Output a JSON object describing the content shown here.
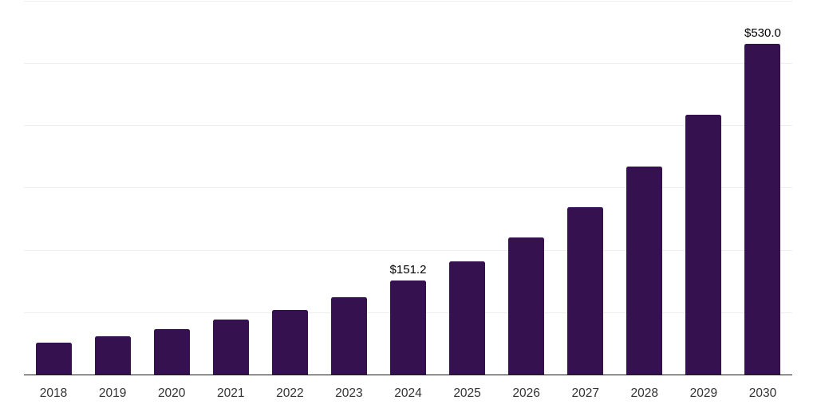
{
  "chart_data": {
    "type": "bar",
    "title": "",
    "xlabel": "",
    "ylabel": "",
    "categories": [
      "2018",
      "2019",
      "2020",
      "2021",
      "2022",
      "2023",
      "2024",
      "2025",
      "2026",
      "2027",
      "2028",
      "2029",
      "2030"
    ],
    "values": [
      50.6,
      60.8,
      73.5,
      87.6,
      103.8,
      124.6,
      151.2,
      181.6,
      219.8,
      268.6,
      333.3,
      416.5,
      530.0
    ],
    "data_labels": [
      {
        "category": "2024",
        "text": "$151.2"
      },
      {
        "category": "2030",
        "text": "$530.0"
      }
    ],
    "ylim": [
      0,
      600
    ],
    "gridline_step": 100,
    "grid": "horizontal",
    "legend": "none",
    "y_axis_tick_labels_visible": false,
    "colors": {
      "bar": "#361150",
      "gridline": "#eeeeee",
      "axis_line": "#1a1a1a",
      "value_label": "#000000",
      "tick_label": "#333333",
      "background": "#ffffff"
    }
  }
}
